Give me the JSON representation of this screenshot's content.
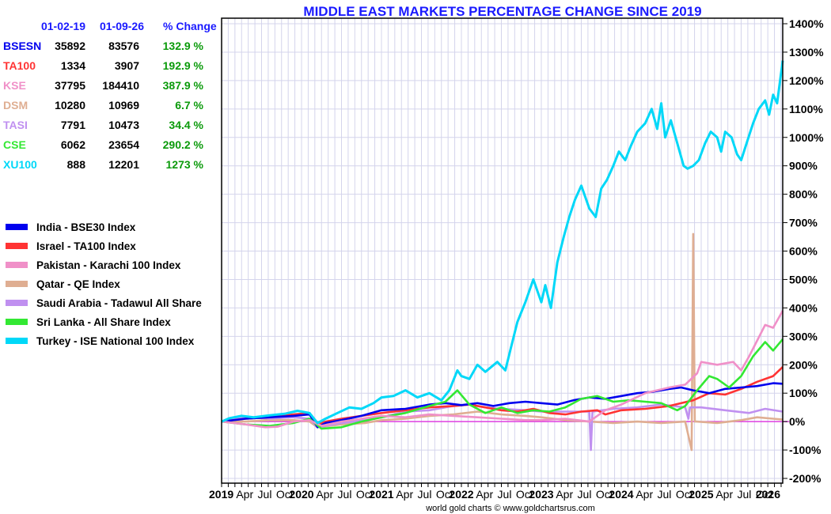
{
  "chart_data": {
    "type": "line",
    "title": "MIDDLE EAST MARKETS PERCENTAGE CHANGE SINCE 2019",
    "xlabel": "",
    "ylabel": "",
    "ylim": [
      -200,
      1400
    ],
    "xlim": [
      2019.0,
      2026.02
    ],
    "grid": true,
    "legend_position": "left",
    "yticks": [
      "1400%",
      "1300%",
      "1200%",
      "1100%",
      "1000%",
      "900%",
      "800%",
      "700%",
      "600%",
      "500%",
      "400%",
      "300%",
      "200%",
      "100%",
      "0%",
      "-100%",
      "-200%"
    ],
    "ytick_values": [
      1400,
      1300,
      1200,
      1100,
      1000,
      900,
      800,
      700,
      600,
      500,
      400,
      300,
      200,
      100,
      0,
      -100,
      -200
    ],
    "xticks": [
      {
        "label": "2019",
        "year": true,
        "x": 2019.0
      },
      {
        "label": "Apr",
        "year": false,
        "x": 2019.25
      },
      {
        "label": "Jul",
        "year": false,
        "x": 2019.5
      },
      {
        "label": "Oct",
        "year": false,
        "x": 2019.75
      },
      {
        "label": "2020",
        "year": true,
        "x": 2020.0
      },
      {
        "label": "Apr",
        "year": false,
        "x": 2020.25
      },
      {
        "label": "Jul",
        "year": false,
        "x": 2020.5
      },
      {
        "label": "Oct",
        "year": false,
        "x": 2020.75
      },
      {
        "label": "2021",
        "year": true,
        "x": 2021.0
      },
      {
        "label": "Apr",
        "year": false,
        "x": 2021.25
      },
      {
        "label": "Jul",
        "year": false,
        "x": 2021.5
      },
      {
        "label": "Oct",
        "year": false,
        "x": 2021.75
      },
      {
        "label": "2022",
        "year": true,
        "x": 2022.0
      },
      {
        "label": "Apr",
        "year": false,
        "x": 2022.25
      },
      {
        "label": "Jul",
        "year": false,
        "x": 2022.5
      },
      {
        "label": "Oct",
        "year": false,
        "x": 2022.75
      },
      {
        "label": "2023",
        "year": true,
        "x": 2023.0
      },
      {
        "label": "Apr",
        "year": false,
        "x": 2023.25
      },
      {
        "label": "Jul",
        "year": false,
        "x": 2023.5
      },
      {
        "label": "Oct",
        "year": false,
        "x": 2023.75
      },
      {
        "label": "2024",
        "year": true,
        "x": 2024.0
      },
      {
        "label": "Apr",
        "year": false,
        "x": 2024.25
      },
      {
        "label": "Jul",
        "year": false,
        "x": 2024.5
      },
      {
        "label": "Oct",
        "year": false,
        "x": 2024.75
      },
      {
        "label": "2025",
        "year": true,
        "x": 2025.0
      },
      {
        "label": "Apr",
        "year": false,
        "x": 2025.25
      },
      {
        "label": "Jul",
        "year": false,
        "x": 2025.5
      },
      {
        "label": "Oct",
        "year": false,
        "x": 2025.75
      },
      {
        "label": "2026",
        "year": true,
        "x": 2026.0
      }
    ],
    "series": [
      {
        "name": "Turkey - ISE National 100 Index",
        "symbol": "XU100",
        "color": "#00d8f8",
        "x": [
          2019.0,
          2019.1,
          2019.25,
          2019.4,
          2019.6,
          2019.8,
          2019.95,
          2020.1,
          2020.2,
          2020.3,
          2020.45,
          2020.6,
          2020.75,
          2020.9,
          2021.0,
          2021.15,
          2021.3,
          2021.45,
          2021.6,
          2021.75,
          2021.85,
          2021.95,
          2022.0,
          2022.1,
          2022.2,
          2022.3,
          2022.45,
          2022.55,
          2022.62,
          2022.7,
          2022.8,
          2022.9,
          2023.0,
          2023.05,
          2023.12,
          2023.2,
          2023.28,
          2023.35,
          2023.42,
          2023.5,
          2023.6,
          2023.68,
          2023.75,
          2023.82,
          2023.9,
          2023.97,
          2024.05,
          2024.12,
          2024.2,
          2024.3,
          2024.38,
          2024.45,
          2024.5,
          2024.55,
          2024.62,
          2024.7,
          2024.78,
          2024.83,
          2024.9,
          2024.97,
          2025.05,
          2025.12,
          2025.2,
          2025.25,
          2025.3,
          2025.38,
          2025.45,
          2025.5,
          2025.58,
          2025.65,
          2025.72,
          2025.8,
          2025.85,
          2025.9,
          2025.95,
          2026.02
        ],
        "y": [
          0,
          12,
          20,
          15,
          22,
          28,
          38,
          30,
          -5,
          10,
          30,
          50,
          45,
          65,
          85,
          90,
          110,
          85,
          100,
          75,
          110,
          180,
          160,
          150,
          200,
          175,
          210,
          180,
          260,
          350,
          420,
          500,
          420,
          480,
          400,
          560,
          650,
          720,
          780,
          830,
          750,
          720,
          820,
          850,
          900,
          950,
          920,
          970,
          1020,
          1050,
          1100,
          1030,
          1120,
          1000,
          1060,
          980,
          900,
          890,
          900,
          920,
          980,
          1020,
          1000,
          950,
          1020,
          1000,
          940,
          920,
          990,
          1050,
          1100,
          1130,
          1080,
          1150,
          1120,
          1270
        ]
      },
      {
        "name": "Pakistan - Karachi 100 Index",
        "symbol": "KSE",
        "color": "#f090c8",
        "x": [
          2019.0,
          2019.3,
          2019.55,
          2019.7,
          2019.9,
          2020.1,
          2020.25,
          2020.5,
          2020.75,
          2021.0,
          2021.3,
          2021.6,
          2021.9,
          2022.2,
          2022.5,
          2022.8,
          2023.0,
          2023.3,
          2023.6,
          2023.8,
          2024.0,
          2024.3,
          2024.6,
          2024.8,
          2024.95,
          2025.0,
          2025.2,
          2025.4,
          2025.5,
          2025.6,
          2025.8,
          2025.9,
          2026.02
        ],
        "y": [
          0,
          -10,
          -20,
          -18,
          0,
          5,
          -15,
          0,
          10,
          20,
          15,
          25,
          20,
          15,
          10,
          5,
          5,
          10,
          0,
          40,
          60,
          100,
          120,
          130,
          170,
          210,
          200,
          210,
          180,
          230,
          340,
          330,
          390
        ]
      },
      {
        "name": "Sri Lanka - All Share Index",
        "symbol": "CSE",
        "color": "#33e833",
        "x": [
          2019.0,
          2019.3,
          2019.6,
          2019.9,
          2020.1,
          2020.25,
          2020.5,
          2020.75,
          2021.0,
          2021.3,
          2021.6,
          2021.8,
          2021.95,
          2022.1,
          2022.3,
          2022.5,
          2022.7,
          2022.9,
          2023.1,
          2023.3,
          2023.5,
          2023.7,
          2023.9,
          2024.1,
          2024.3,
          2024.5,
          2024.7,
          2024.8,
          2024.95,
          2025.1,
          2025.2,
          2025.35,
          2025.5,
          2025.65,
          2025.8,
          2025.9,
          2026.02
        ],
        "y": [
          0,
          -10,
          -15,
          -5,
          10,
          -25,
          -20,
          0,
          15,
          30,
          55,
          70,
          110,
          60,
          30,
          50,
          30,
          40,
          35,
          50,
          80,
          90,
          70,
          75,
          70,
          65,
          40,
          55,
          110,
          160,
          150,
          120,
          160,
          230,
          280,
          250,
          290
        ]
      },
      {
        "name": "Israel - TA100 Index",
        "symbol": "TA100",
        "color": "#ff3333",
        "x": [
          2019.0,
          2019.3,
          2019.6,
          2019.9,
          2020.1,
          2020.2,
          2020.3,
          2020.5,
          2020.75,
          2021.0,
          2021.3,
          2021.6,
          2021.9,
          2022.1,
          2022.3,
          2022.5,
          2022.7,
          2022.9,
          2023.1,
          2023.3,
          2023.5,
          2023.7,
          2023.8,
          2024.0,
          2024.3,
          2024.6,
          2024.9,
          2025.1,
          2025.3,
          2025.5,
          2025.7,
          2025.9,
          2026.02
        ],
        "y": [
          0,
          10,
          15,
          25,
          30,
          -10,
          0,
          10,
          20,
          30,
          40,
          50,
          55,
          60,
          50,
          40,
          35,
          45,
          30,
          25,
          35,
          40,
          25,
          40,
          45,
          55,
          75,
          100,
          95,
          115,
          140,
          160,
          192
        ]
      },
      {
        "name": "India - BSE30 Index",
        "symbol": "BSESN",
        "color": "#0000ee",
        "x": [
          2019.0,
          2019.3,
          2019.6,
          2019.9,
          2020.1,
          2020.2,
          2020.3,
          2020.5,
          2020.75,
          2021.0,
          2021.3,
          2021.6,
          2021.8,
          2022.0,
          2022.2,
          2022.4,
          2022.6,
          2022.8,
          2023.0,
          2023.2,
          2023.4,
          2023.6,
          2023.8,
          2024.0,
          2024.2,
          2024.4,
          2024.6,
          2024.75,
          2024.9,
          2025.1,
          2025.3,
          2025.5,
          2025.7,
          2025.9,
          2026.02
        ],
        "y": [
          0,
          10,
          15,
          20,
          25,
          -20,
          -5,
          5,
          20,
          40,
          45,
          60,
          65,
          58,
          65,
          55,
          65,
          70,
          65,
          60,
          75,
          85,
          80,
          90,
          100,
          105,
          115,
          120,
          110,
          100,
          115,
          120,
          125,
          135,
          133
        ]
      },
      {
        "name": "Saudi Arabia - Tadawul All Share",
        "symbol": "TASI",
        "color": "#c090f0",
        "x": [
          2019.0,
          2019.3,
          2019.6,
          2019.9,
          2020.1,
          2020.2,
          2020.5,
          2020.8,
          2021.0,
          2021.3,
          2021.6,
          2021.9,
          2022.1,
          2022.3,
          2022.5,
          2022.8,
          2023.0,
          2023.3,
          2023.6,
          2023.62,
          2023.64,
          2023.9,
          2024.2,
          2024.5,
          2024.8,
          2024.84,
          2024.86,
          2025.0,
          2025.3,
          2025.6,
          2025.8,
          2026.02
        ],
        "y": [
          0,
          15,
          10,
          15,
          10,
          -20,
          -5,
          5,
          15,
          35,
          40,
          55,
          60,
          50,
          45,
          40,
          35,
          35,
          35,
          -100,
          35,
          45,
          50,
          60,
          50,
          10,
          50,
          50,
          40,
          30,
          45,
          35
        ]
      },
      {
        "name": "Qatar - QE Index",
        "symbol": "DSM",
        "color": "#dfae92",
        "x": [
          2019.0,
          2019.3,
          2019.6,
          2019.9,
          2020.1,
          2020.2,
          2020.5,
          2020.8,
          2021.0,
          2021.3,
          2021.6,
          2021.9,
          2022.2,
          2022.5,
          2022.8,
          2023.0,
          2023.3,
          2023.6,
          2023.9,
          2024.2,
          2024.5,
          2024.8,
          2024.88,
          2024.9,
          2024.92,
          2024.94,
          2025.2,
          2025.5,
          2025.7,
          2025.9,
          2026.02
        ],
        "y": [
          0,
          0,
          5,
          5,
          0,
          -20,
          -10,
          -5,
          5,
          10,
          20,
          25,
          35,
          25,
          20,
          15,
          5,
          0,
          -5,
          0,
          -5,
          0,
          -100,
          660,
          0,
          0,
          -5,
          5,
          15,
          10,
          7
        ]
      }
    ],
    "table": {
      "headers": [
        "01-02-19",
        "01-09-26",
        "% Change"
      ],
      "rows": [
        {
          "symbol": "BSESN",
          "color": "#0000ee",
          "start": "35892",
          "end": "83576",
          "change": "132.9 %"
        },
        {
          "symbol": "TA100",
          "color": "#ff3333",
          "start": "1334",
          "end": "3907",
          "change": "192.9 %"
        },
        {
          "symbol": "KSE",
          "color": "#f090c8",
          "start": "37795",
          "end": "184410",
          "change": "387.9 %"
        },
        {
          "symbol": "DSM",
          "color": "#dfae92",
          "start": "10280",
          "end": "10969",
          "change": "6.7 %"
        },
        {
          "symbol": "TASI",
          "color": "#c090f0",
          "start": "7791",
          "end": "10473",
          "change": "34.4 %"
        },
        {
          "symbol": "CSE",
          "color": "#33e833",
          "start": "6062",
          "end": "23654",
          "change": "290.2 %"
        },
        {
          "symbol": "XU100",
          "color": "#00d8f8",
          "start": "888",
          "end": "12201",
          "change": "1273 %"
        }
      ]
    },
    "legend": [
      {
        "label": "India - BSE30 Index",
        "color": "#0000ee"
      },
      {
        "label": "Israel - TA100 Index",
        "color": "#ff3333"
      },
      {
        "label": "Pakistan - Karachi 100 Index",
        "color": "#f090c8"
      },
      {
        "label": "Qatar - QE Index",
        "color": "#dfae92"
      },
      {
        "label": "Saudi Arabia - Tadawul All Share",
        "color": "#c090f0"
      },
      {
        "label": "Sri Lanka - All Share Index",
        "color": "#33e833"
      },
      {
        "label": "Turkey - ISE National 100 Index",
        "color": "#00d8f8"
      }
    ],
    "zero_line_color": "#e040e0",
    "footer": "world gold charts © www.goldchartsrus.com"
  }
}
